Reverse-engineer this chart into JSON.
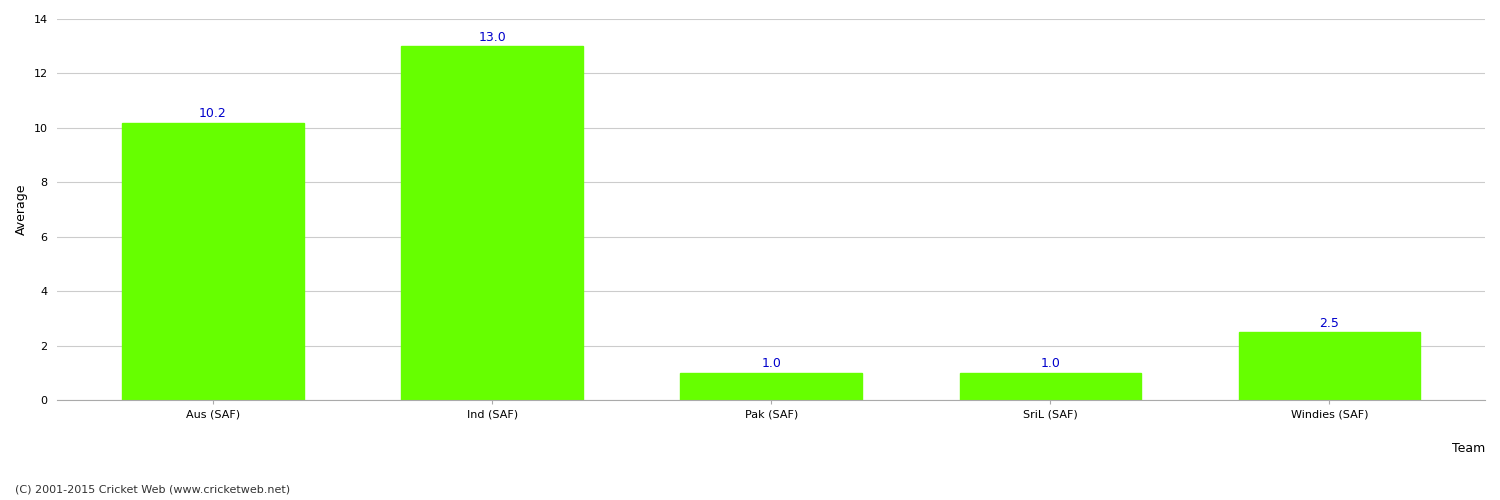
{
  "categories": [
    "Aus (SAF)",
    "Ind (SAF)",
    "Pak (SAF)",
    "SriL (SAF)",
    "Windies (SAF)"
  ],
  "values": [
    10.2,
    13.0,
    1.0,
    1.0,
    2.5
  ],
  "bar_color": "#66ff00",
  "bar_edge_color": "#66ff00",
  "xlabel": "Team",
  "ylabel": "Average",
  "ylim": [
    0,
    14
  ],
  "yticks": [
    0,
    2,
    4,
    6,
    8,
    10,
    12,
    14
  ],
  "label_color": "#0000cc",
  "label_fontsize": 9,
  "axis_fontsize": 9,
  "tick_fontsize": 8,
  "background_color": "#ffffff",
  "grid_color": "#cccccc",
  "footer_text": "(C) 2001-2015 Cricket Web (www.cricketweb.net)",
  "footer_fontsize": 8,
  "footer_color": "#333333",
  "bar_width": 0.65
}
